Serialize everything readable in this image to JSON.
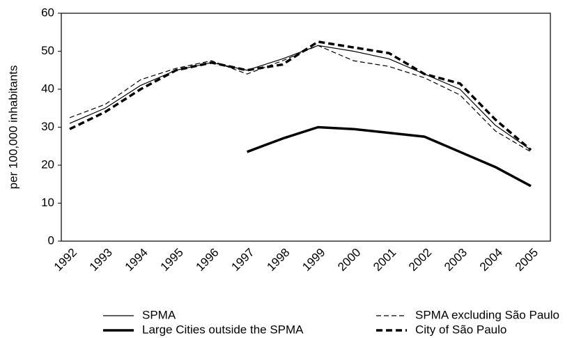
{
  "chart_data": {
    "type": "line",
    "y_label": "per 100,000 inhabitants",
    "categories": [
      "1992",
      "1993",
      "1994",
      "1995",
      "1996",
      "1997",
      "1998",
      "1999",
      "2000",
      "2001",
      "2002",
      "2003",
      "2004",
      "2005"
    ],
    "ylim": [
      0,
      60
    ],
    "yticks": [
      0,
      10,
      20,
      30,
      40,
      50,
      60
    ],
    "series": [
      {
        "name": "SPMA",
        "color": "#000000",
        "width": 1.2,
        "dash": "none",
        "values": [
          31,
          35,
          41,
          45,
          47,
          45,
          48,
          51.5,
          50,
          48,
          44,
          40,
          30.5,
          24
        ]
      },
      {
        "name": "SPMA excluding São Paulo",
        "color": "#000000",
        "width": 1.2,
        "dash": "7 4",
        "values": [
          32.5,
          36,
          42.5,
          45.5,
          47.5,
          44,
          47.5,
          51.5,
          47.5,
          46,
          43,
          38.5,
          29,
          23.5
        ]
      },
      {
        "name": "Large Cities outside the SPMA",
        "color": "#000000",
        "width": 3.5,
        "dash": "none",
        "values": [
          null,
          null,
          null,
          null,
          null,
          23.5,
          27,
          30,
          29.5,
          28.5,
          27.5,
          23.5,
          19.5,
          14.5
        ]
      },
      {
        "name": "City of São Paulo",
        "color": "#000000",
        "width": 3.5,
        "dash": "9 5",
        "values": [
          29.5,
          34,
          40,
          45,
          47,
          45,
          46.5,
          52.5,
          51,
          49.5,
          44,
          41.5,
          32,
          24
        ]
      }
    ]
  }
}
